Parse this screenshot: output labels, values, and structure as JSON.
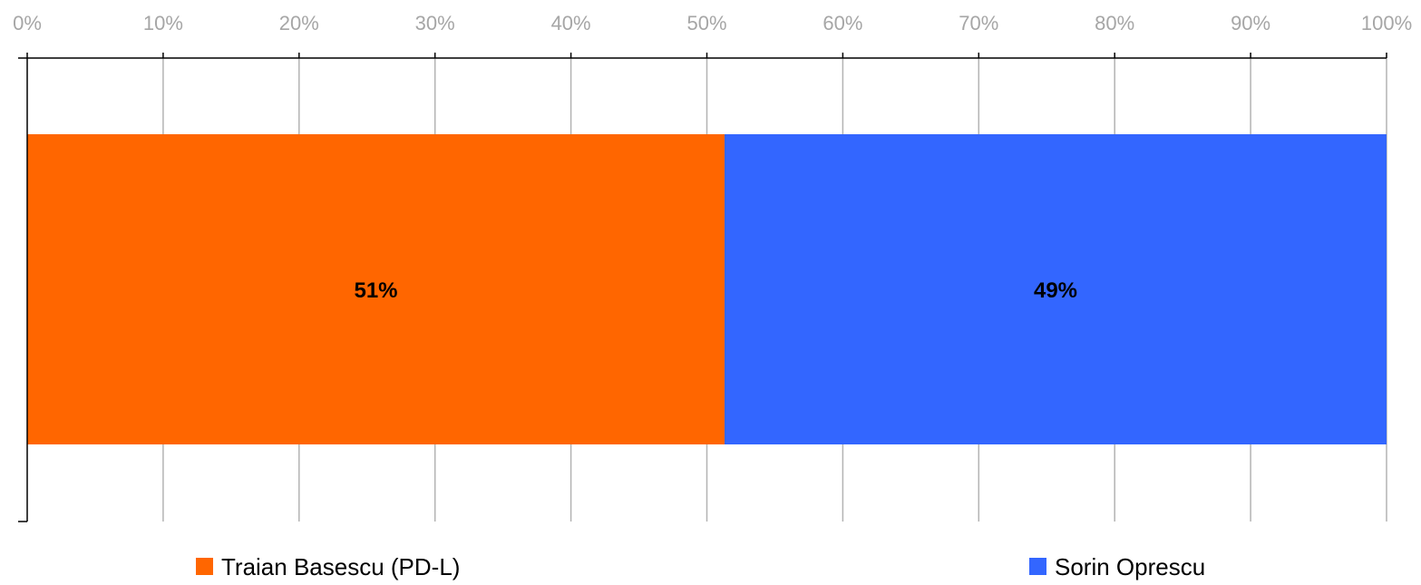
{
  "chart_data": {
    "type": "bar",
    "orientation": "horizontal",
    "stacked": true,
    "percent_stacked": true,
    "categories": [
      ""
    ],
    "series": [
      {
        "name": "Traian Basescu (PD-L)",
        "values": [
          51.3
        ],
        "label": "51%",
        "color": "#ff6600"
      },
      {
        "name": "Sorin Oprescu",
        "values": [
          48.7
        ],
        "label": "49%",
        "color": "#3366ff"
      }
    ],
    "xlim": [
      0,
      100
    ],
    "x_ticks": [
      0,
      10,
      20,
      30,
      40,
      50,
      60,
      70,
      80,
      90,
      100
    ],
    "x_tick_labels": [
      "0%",
      "10%",
      "20%",
      "30%",
      "40%",
      "50%",
      "60%",
      "70%",
      "80%",
      "90%",
      "100%"
    ],
    "x_axis_position": "top",
    "grid": true,
    "grid_color": "#b3b3b3",
    "axis_color": "#000000",
    "tick_label_color": "#a6a6a6",
    "legend_position": "bottom",
    "title": "",
    "xlabel": "",
    "ylabel": ""
  }
}
